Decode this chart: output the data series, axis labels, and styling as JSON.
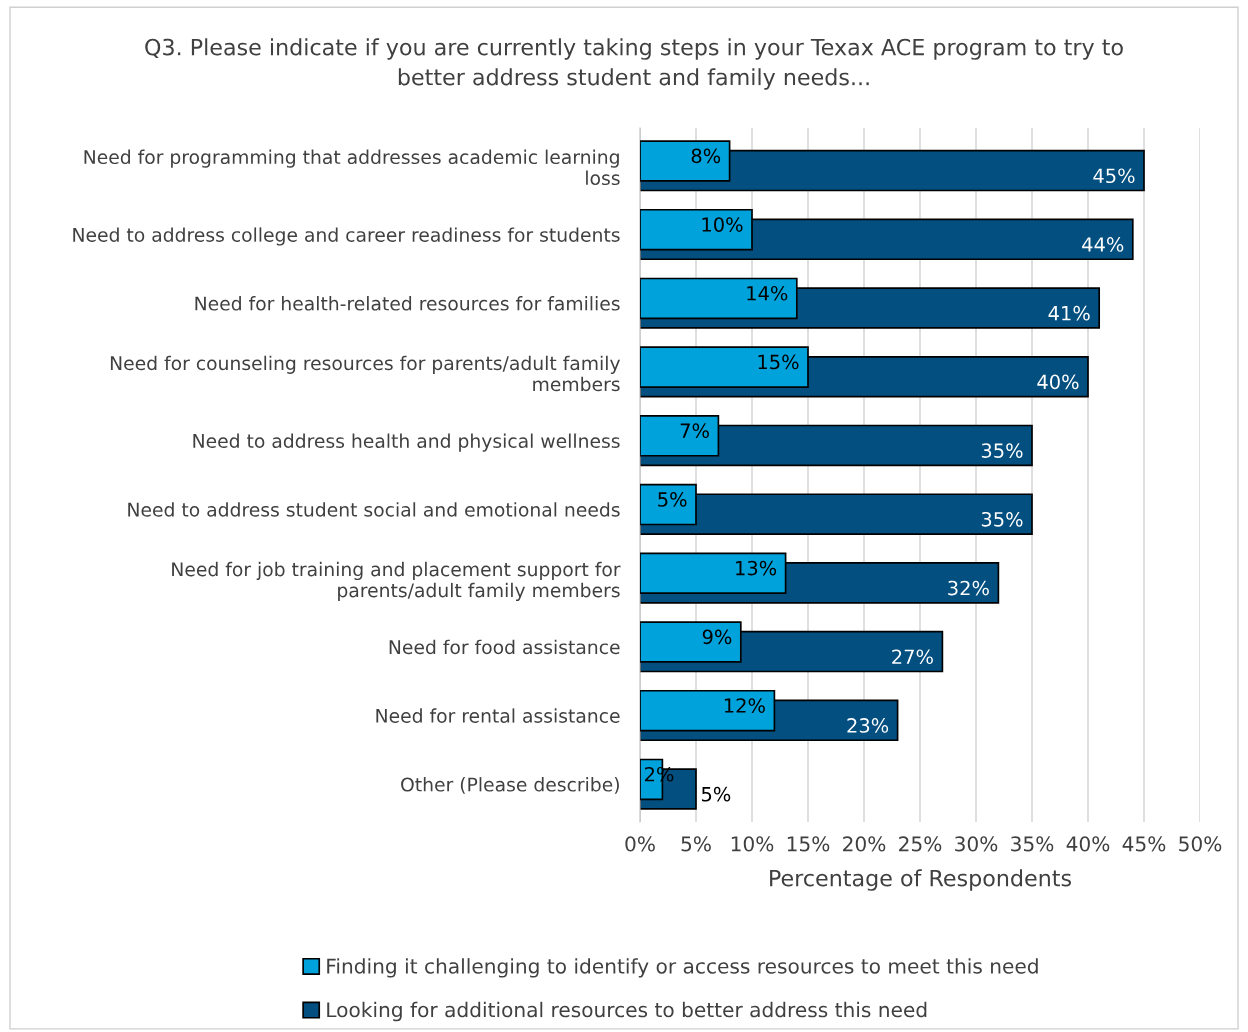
{
  "chart_data": {
    "type": "bar",
    "orientation": "horizontal",
    "title": "Q3. Please indicate if you are currently taking steps in your Texax ACE program to try to\nbetter address student and family needs...",
    "xlabel": "Percentage of Respondents",
    "categories": [
      "Need for programming that addresses academic learning\nloss",
      "Need to address college and career readiness for students",
      "Need for health-related resources for families",
      "Need for counseling resources for parents/adult family\nmembers",
      "Need to address health and physical wellness",
      "Need to address student social and emotional needs",
      "Need for job training and placement support for\nparents/adult family members",
      "Need for food assistance",
      "Need for rental assistance",
      "Other (Please describe)"
    ],
    "series": [
      {
        "name": "Finding it challenging to identify or access resources to meet this need",
        "color": "#00a2db",
        "values": [
          8,
          10,
          14,
          15,
          7,
          5,
          13,
          9,
          12,
          2
        ],
        "value_labels": [
          "8%",
          "10%",
          "14%",
          "15%",
          "7%",
          "5%",
          "13%",
          "9%",
          "12%",
          "2%"
        ]
      },
      {
        "name": "Looking for additional resources to better address this need",
        "color": "#034f80",
        "values": [
          45,
          44,
          41,
          40,
          35,
          35,
          32,
          27,
          23,
          5
        ],
        "value_labels": [
          "45%",
          "44%",
          "41%",
          "40%",
          "35%",
          "35%",
          "32%",
          "27%",
          "23%",
          "5%"
        ]
      }
    ],
    "xlim": [
      0,
      50
    ],
    "xticks": [
      {
        "value": 0,
        "label": "0%"
      },
      {
        "value": 5,
        "label": "5%"
      },
      {
        "value": 10,
        "label": "10%"
      },
      {
        "value": 15,
        "label": "15%"
      },
      {
        "value": 20,
        "label": "20%"
      },
      {
        "value": 25,
        "label": "25%"
      },
      {
        "value": 30,
        "label": "30%"
      },
      {
        "value": 35,
        "label": "35%"
      },
      {
        "value": 40,
        "label": "40%"
      },
      {
        "value": 45,
        "label": "45%"
      },
      {
        "value": 50,
        "label": "50%"
      }
    ],
    "grid": "x",
    "legend": "bottom"
  }
}
